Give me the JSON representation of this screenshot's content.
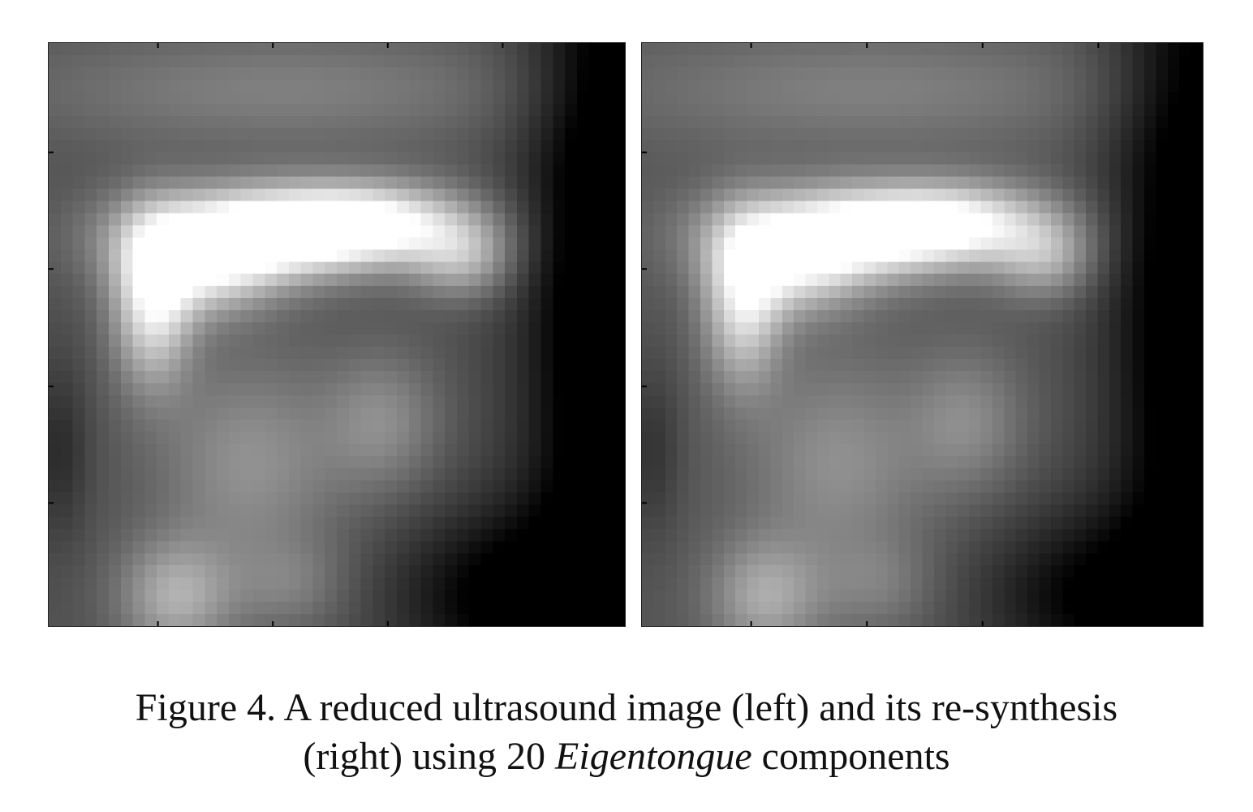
{
  "figure": {
    "caption_line1": "Figure 4. A reduced ultrasound image (left) and its re-synthesis",
    "caption_line2_pre": "(right) using 20 ",
    "caption_line2_italic": "Eigentongue",
    "caption_line2_post": " components"
  },
  "panels": {
    "left": {
      "name": "reduced ultrasound image",
      "colormap": "grayscale"
    },
    "right": {
      "name": "re-synthesis",
      "colormap": "grayscale"
    }
  }
}
